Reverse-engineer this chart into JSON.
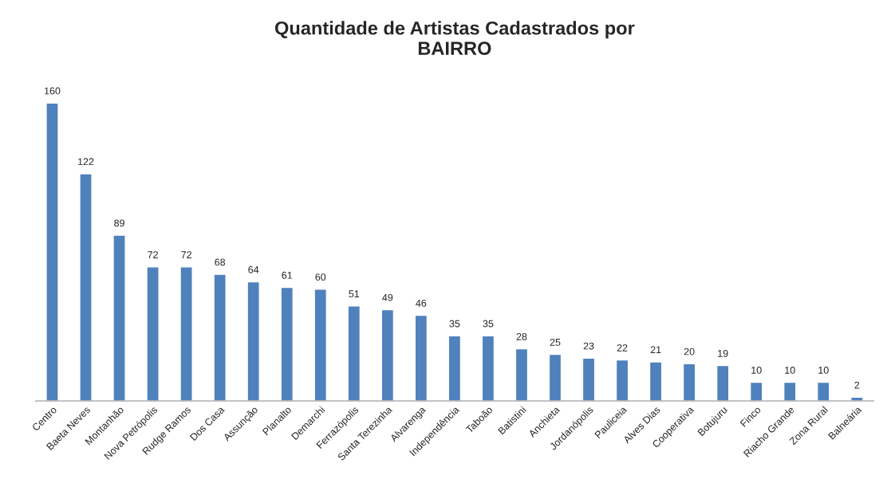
{
  "chart_data": {
    "type": "bar",
    "title": "Quantidade de Artistas Cadastrados por\nBAIRRO",
    "categories": [
      "Centro",
      "Baeta Neves",
      "Montanhão",
      "Nova Petrópolis",
      "Rudge Ramos",
      "Dos Casa",
      "Assunção",
      "Planalto",
      "Demarchi",
      "Ferrazópolis",
      "Santa Terezinha",
      "Alvarenga",
      "Independência",
      "Taboão",
      "Batistini",
      "Anchieta",
      "Jordanópolis",
      "Pauliceia",
      "Alves Dias",
      "Cooperativa",
      "Botujuru",
      "Finco",
      "Riacho Grande",
      "Zona Rural",
      "Balneária"
    ],
    "values": [
      160,
      122,
      89,
      72,
      72,
      68,
      64,
      61,
      60,
      51,
      49,
      46,
      35,
      35,
      28,
      25,
      23,
      22,
      21,
      20,
      19,
      10,
      10,
      10,
      2
    ],
    "color": "#4f81bd",
    "data_labels": true,
    "grid": false,
    "legend": false
  }
}
